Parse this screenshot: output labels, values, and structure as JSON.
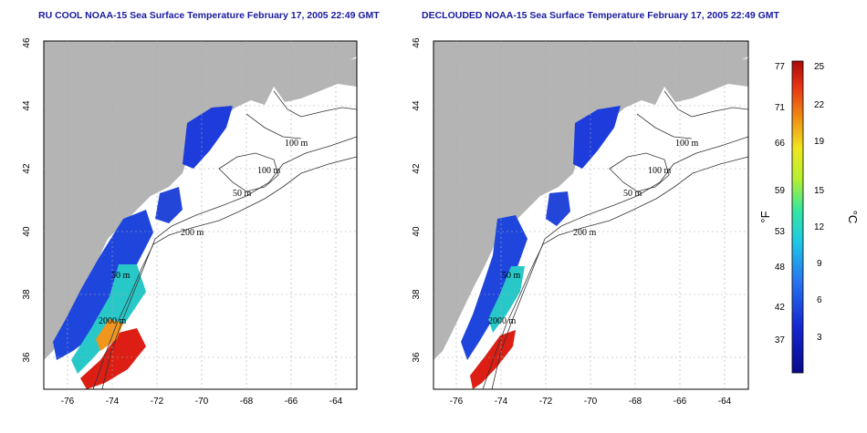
{
  "titles": {
    "left": "RU COOL NOAA-15 Sea Surface Temperature February 17, 2005 22:49 GMT",
    "right": "DECLOUDED NOAA-15 Sea Surface Temperature February 17, 2005 22:49 GMT"
  },
  "map_axes": {
    "x_ticks": [
      "-76",
      "-74",
      "-72",
      "-70",
      "-68",
      "-66",
      "-64"
    ],
    "y_ticks": [
      "46",
      "44",
      "42",
      "40",
      "38",
      "36"
    ]
  },
  "contour_labels": {
    "left": [
      "100 m",
      "100 m",
      "50 m",
      "200 m",
      "50 m",
      "2000 m"
    ],
    "right": [
      "100 m",
      "100 m",
      "50 m",
      "200 m",
      "50 m",
      "2000 m"
    ]
  },
  "colorbar": {
    "fahrenheit_label": "°F",
    "celsius_label": "°C",
    "fahrenheit_ticks": [
      "77",
      "71",
      "66",
      "59",
      "53",
      "48",
      "42",
      "37"
    ],
    "celsius_ticks": [
      "25",
      "22",
      "19",
      "15",
      "12",
      "9",
      "6",
      "3"
    ]
  },
  "colors": {
    "land": "#b4b4b4",
    "ocean": "#ffffff",
    "title": "#1a1aa0",
    "cold": "#1e3cdc",
    "warm": "#dc1e14"
  }
}
